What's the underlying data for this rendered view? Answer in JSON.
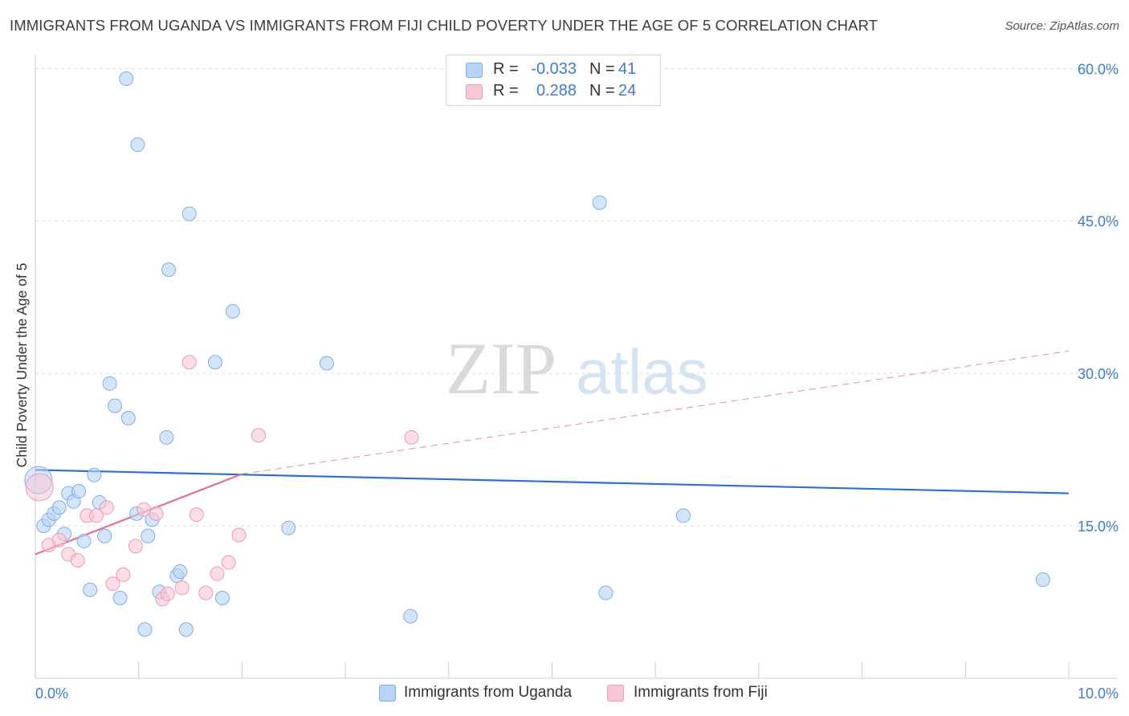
{
  "title": "IMMIGRANTS FROM UGANDA VS IMMIGRANTS FROM FIJI CHILD POVERTY UNDER THE AGE OF 5 CORRELATION CHART",
  "source": "Source: ZipAtlas.com",
  "watermark": {
    "part1": "ZIP",
    "part2": "atlas"
  },
  "legend": {
    "rows": [
      {
        "r_label": "R =",
        "r_value": "-0.033",
        "n_label": "N =",
        "n_value": "41"
      },
      {
        "r_label": "R =",
        "r_value": "0.288",
        "n_label": "N =",
        "n_value": "24"
      }
    ]
  },
  "bottom_legend": {
    "uganda": "Immigrants from Uganda",
    "fiji": "Immigrants from Fiji"
  },
  "colors": {
    "uganda_fill": "#b8d3f5",
    "uganda_stroke": "#7eaee6",
    "uganda_line": "#2e6fcf",
    "fiji_fill": "#f8c7d5",
    "fiji_stroke": "#ee9ab3",
    "fiji_line": "#e0709a",
    "axis_text": "#3f7bd0",
    "grid": "#dcdcdc"
  },
  "chart_data": {
    "type": "scatter",
    "xlabel": "",
    "ylabel": "Child Poverty Under the Age of 5",
    "xlim": [
      0,
      10
    ],
    "ylim": [
      0,
      62
    ],
    "x_tick_labels": [
      {
        "v": 0,
        "label": "0.0%"
      },
      {
        "v": 10,
        "label": "10.0%"
      }
    ],
    "y_tick_labels": [
      {
        "v": 15,
        "label": "15.0%"
      },
      {
        "v": 30,
        "label": "30.0%"
      },
      {
        "v": 45,
        "label": "45.0%"
      },
      {
        "v": 60,
        "label": "60.0%"
      }
    ],
    "grid": true,
    "legend_position": "top-center",
    "series": [
      {
        "name": "Immigrants from Uganda",
        "points": [
          {
            "x": 0.03,
            "y": 19.5
          },
          {
            "x": 0.08,
            "y": 15.0
          },
          {
            "x": 0.13,
            "y": 15.6
          },
          {
            "x": 0.18,
            "y": 16.2
          },
          {
            "x": 0.23,
            "y": 16.8
          },
          {
            "x": 0.28,
            "y": 14.2
          },
          {
            "x": 0.32,
            "y": 18.2
          },
          {
            "x": 0.37,
            "y": 17.4
          },
          {
            "x": 0.42,
            "y": 18.4
          },
          {
            "x": 0.47,
            "y": 13.5
          },
          {
            "x": 0.53,
            "y": 8.7
          },
          {
            "x": 0.57,
            "y": 20.0
          },
          {
            "x": 0.62,
            "y": 17.3
          },
          {
            "x": 0.67,
            "y": 14.0
          },
          {
            "x": 0.72,
            "y": 29.0
          },
          {
            "x": 0.77,
            "y": 26.8
          },
          {
            "x": 0.82,
            "y": 7.9
          },
          {
            "x": 0.9,
            "y": 25.6
          },
          {
            "x": 0.88,
            "y": 59.0
          },
          {
            "x": 0.98,
            "y": 16.2
          },
          {
            "x": 0.99,
            "y": 52.5
          },
          {
            "x": 1.06,
            "y": 4.8
          },
          {
            "x": 1.09,
            "y": 14.0
          },
          {
            "x": 1.13,
            "y": 15.6
          },
          {
            "x": 1.2,
            "y": 8.5
          },
          {
            "x": 1.27,
            "y": 23.7
          },
          {
            "x": 1.29,
            "y": 40.2
          },
          {
            "x": 1.37,
            "y": 10.1
          },
          {
            "x": 1.4,
            "y": 10.5
          },
          {
            "x": 1.46,
            "y": 4.8
          },
          {
            "x": 1.49,
            "y": 45.7
          },
          {
            "x": 1.74,
            "y": 31.1
          },
          {
            "x": 1.81,
            "y": 7.9
          },
          {
            "x": 1.91,
            "y": 36.1
          },
          {
            "x": 2.45,
            "y": 14.8
          },
          {
            "x": 2.82,
            "y": 31.0
          },
          {
            "x": 3.63,
            "y": 6.1
          },
          {
            "x": 5.46,
            "y": 46.8
          },
          {
            "x": 5.52,
            "y": 8.4
          },
          {
            "x": 6.27,
            "y": 16.0
          },
          {
            "x": 9.75,
            "y": 9.7
          }
        ],
        "trend": {
          "x0": 0,
          "y0": 20.5,
          "x1": 10,
          "y1": 18.2
        }
      },
      {
        "name": "Immigrants from Fiji",
        "points": [
          {
            "x": 0.04,
            "y": 18.8
          },
          {
            "x": 0.13,
            "y": 13.1
          },
          {
            "x": 0.23,
            "y": 13.6
          },
          {
            "x": 0.32,
            "y": 12.2
          },
          {
            "x": 0.41,
            "y": 11.6
          },
          {
            "x": 0.5,
            "y": 16.0
          },
          {
            "x": 0.59,
            "y": 16.0
          },
          {
            "x": 0.69,
            "y": 16.8
          },
          {
            "x": 0.75,
            "y": 9.3
          },
          {
            "x": 0.85,
            "y": 10.2
          },
          {
            "x": 0.97,
            "y": 13.0
          },
          {
            "x": 1.05,
            "y": 16.6
          },
          {
            "x": 1.17,
            "y": 16.2
          },
          {
            "x": 1.23,
            "y": 7.8
          },
          {
            "x": 1.28,
            "y": 8.3
          },
          {
            "x": 1.42,
            "y": 8.9
          },
          {
            "x": 1.49,
            "y": 31.1
          },
          {
            "x": 1.56,
            "y": 16.1
          },
          {
            "x": 1.65,
            "y": 8.4
          },
          {
            "x": 1.76,
            "y": 10.3
          },
          {
            "x": 1.87,
            "y": 11.4
          },
          {
            "x": 1.97,
            "y": 14.1
          },
          {
            "x": 2.16,
            "y": 23.9
          },
          {
            "x": 3.64,
            "y": 23.7
          }
        ],
        "trend": {
          "x0": 0,
          "y0": 12.2,
          "x1": 2.0,
          "y1": 20.1,
          "dash_to_x": 10,
          "dash_to_y": 32.2
        }
      }
    ]
  }
}
